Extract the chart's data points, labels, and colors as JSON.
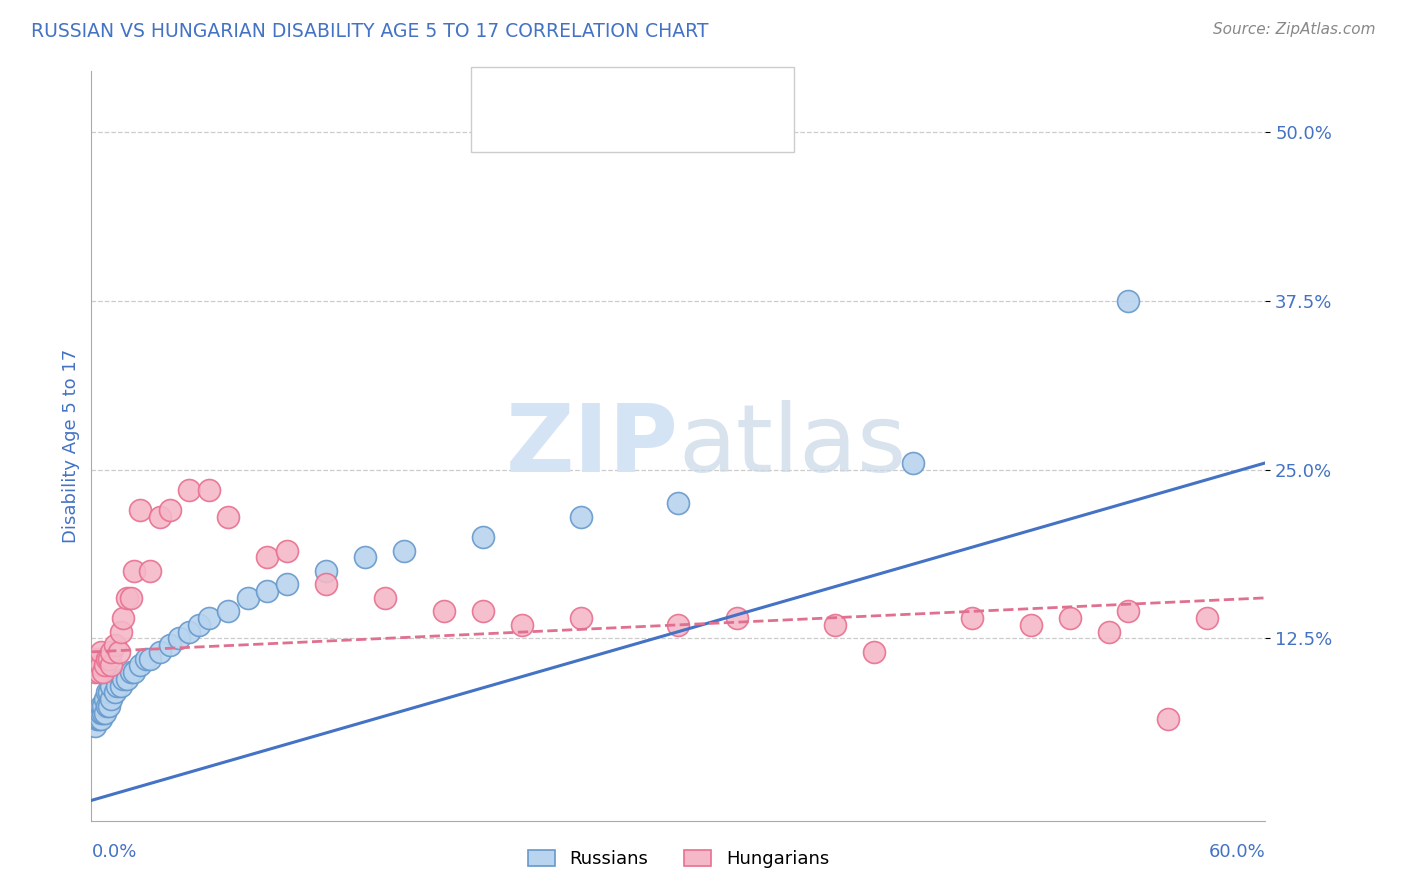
{
  "title": "RUSSIAN VS HUNGARIAN DISABILITY AGE 5 TO 17 CORRELATION CHART",
  "source": "Source: ZipAtlas.com",
  "ylabel": "Disability Age 5 to 17",
  "xlim": [
    0.0,
    0.6
  ],
  "ylim": [
    -0.01,
    0.545
  ],
  "ytick_vals": [
    0.125,
    0.25,
    0.375,
    0.5
  ],
  "ytick_labels": [
    "12.5%",
    "25.0%",
    "37.5%",
    "50.0%"
  ],
  "russian_fc": "#b8d4ee",
  "russian_ec": "#6699cc",
  "hungarian_fc": "#f4b8c8",
  "hungarian_ec": "#e87090",
  "russian_line_color": "#4472c4",
  "hungarian_line_color": "#e07090",
  "title_color": "#4472c4",
  "tick_color": "#4472c4",
  "grid_color": "#cccccc",
  "watermark_color": "#d5e4f5",
  "russian_x": [
    0.002,
    0.003,
    0.003,
    0.004,
    0.004,
    0.005,
    0.005,
    0.005,
    0.006,
    0.006,
    0.007,
    0.007,
    0.008,
    0.008,
    0.009,
    0.009,
    0.01,
    0.01,
    0.012,
    0.013,
    0.015,
    0.016,
    0.018,
    0.02,
    0.022,
    0.025,
    0.028,
    0.03,
    0.035,
    0.04,
    0.045,
    0.05,
    0.055,
    0.06,
    0.07,
    0.08,
    0.09,
    0.1,
    0.12,
    0.14,
    0.16,
    0.2,
    0.25,
    0.3,
    0.42,
    0.53
  ],
  "russian_y": [
    0.06,
    0.065,
    0.07,
    0.065,
    0.07,
    0.065,
    0.07,
    0.075,
    0.07,
    0.075,
    0.07,
    0.08,
    0.075,
    0.085,
    0.075,
    0.085,
    0.08,
    0.09,
    0.085,
    0.09,
    0.09,
    0.095,
    0.095,
    0.1,
    0.1,
    0.105,
    0.11,
    0.11,
    0.115,
    0.12,
    0.125,
    0.13,
    0.135,
    0.14,
    0.145,
    0.155,
    0.16,
    0.165,
    0.175,
    0.185,
    0.19,
    0.2,
    0.215,
    0.225,
    0.255,
    0.375
  ],
  "hungarian_x": [
    0.002,
    0.003,
    0.003,
    0.004,
    0.004,
    0.005,
    0.005,
    0.006,
    0.007,
    0.008,
    0.009,
    0.01,
    0.01,
    0.012,
    0.014,
    0.015,
    0.016,
    0.018,
    0.02,
    0.022,
    0.025,
    0.03,
    0.035,
    0.04,
    0.05,
    0.06,
    0.07,
    0.09,
    0.1,
    0.12,
    0.15,
    0.18,
    0.2,
    0.22,
    0.25,
    0.3,
    0.33,
    0.38,
    0.4,
    0.45,
    0.48,
    0.5,
    0.52,
    0.53,
    0.55,
    0.57
  ],
  "hungarian_y": [
    0.1,
    0.105,
    0.11,
    0.1,
    0.11,
    0.105,
    0.115,
    0.1,
    0.105,
    0.11,
    0.11,
    0.105,
    0.115,
    0.12,
    0.115,
    0.13,
    0.14,
    0.155,
    0.155,
    0.175,
    0.22,
    0.175,
    0.215,
    0.22,
    0.235,
    0.235,
    0.215,
    0.185,
    0.19,
    0.165,
    0.155,
    0.145,
    0.145,
    0.135,
    0.14,
    0.135,
    0.14,
    0.135,
    0.115,
    0.14,
    0.135,
    0.14,
    0.13,
    0.145,
    0.065,
    0.14
  ],
  "russian_trend_x": [
    0.0,
    0.6
  ],
  "russian_trend_y": [
    0.005,
    0.255
  ],
  "hungarian_trend_x": [
    0.0,
    0.6
  ],
  "hungarian_trend_y": [
    0.115,
    0.155
  ]
}
